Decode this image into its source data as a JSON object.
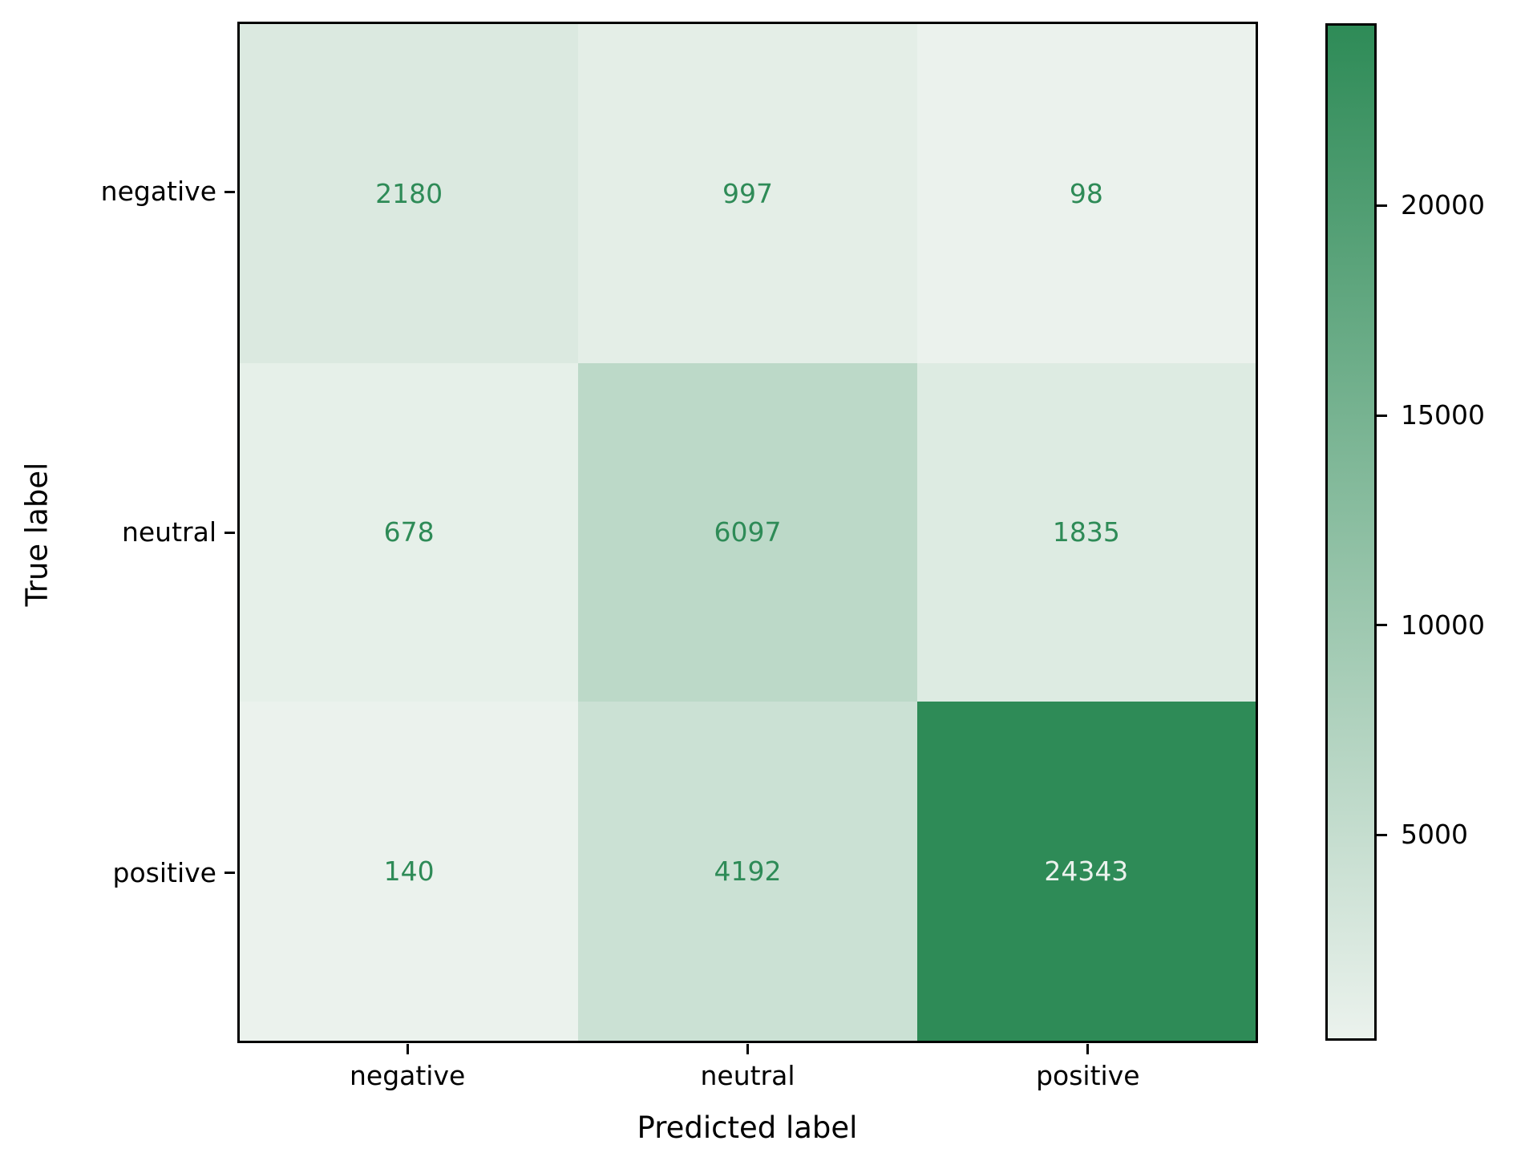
{
  "chart_data": {
    "type": "heatmap",
    "title": "",
    "xlabel": "Predicted label",
    "ylabel": "True label",
    "x_categories": [
      "negative",
      "neutral",
      "positive"
    ],
    "y_categories": [
      "negative",
      "neutral",
      "positive"
    ],
    "matrix": [
      [
        2180,
        997,
        98
      ],
      [
        678,
        6097,
        1835
      ],
      [
        140,
        4192,
        24343
      ]
    ],
    "vmin": 98,
    "vmax": 24343,
    "colorbar": {
      "position": "right",
      "ticks": [
        5000,
        10000,
        15000,
        20000
      ]
    },
    "colors": {
      "cmap_low": "#ebf2ed",
      "cmap_high": "#2e8b57",
      "value_text_on_light": "#2e8b57",
      "value_text_on_dark": "#ebf2ed",
      "axis_text": "#000000",
      "background": "#ffffff"
    },
    "grid": false,
    "legend_position": "none"
  }
}
